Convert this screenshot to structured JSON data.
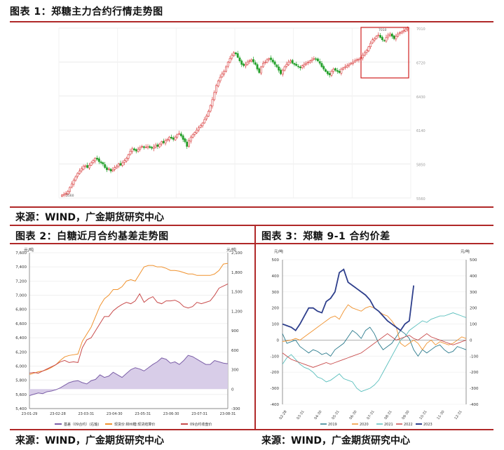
{
  "figure1": {
    "title": "图表 1：郑糖主力合约行情走势图",
    "source": "来源：WIND，广金期货研究中心",
    "chart_data": {
      "type": "candlestick",
      "y_ticks": [
        "5560",
        "5850",
        "6140",
        "6430",
        "6720",
        "7010"
      ],
      "ylim": [
        5560,
        7010
      ],
      "annotations": {
        "low_label": "5560",
        "high_label": "7010"
      },
      "closes": [
        5585,
        5590,
        5600,
        5615,
        5650,
        5680,
        5710,
        5740,
        5770,
        5790,
        5810,
        5830,
        5835,
        5820,
        5840,
        5860,
        5880,
        5900,
        5890,
        5870,
        5860,
        5850,
        5820,
        5800,
        5810,
        5790,
        5800,
        5820,
        5830,
        5850,
        5840,
        5860,
        5880,
        5900,
        5930,
        5960,
        5980,
        5970,
        5960,
        5975,
        5990,
        6000,
        5990,
        5995,
        6000,
        5990,
        5985,
        5995,
        6010,
        6000,
        6020,
        6040,
        6030,
        6050,
        6060,
        6080,
        6070,
        6060,
        6080,
        6100,
        6110,
        6090,
        6060,
        6040,
        6000,
        6050,
        6080,
        6100,
        6120,
        6140,
        6160,
        6180,
        6200,
        6230,
        6260,
        6300,
        6350,
        6400,
        6460,
        6520,
        6560,
        6590,
        6620,
        6640,
        6680,
        6720,
        6750,
        6780,
        6800,
        6790,
        6760,
        6730,
        6700,
        6690,
        6700,
        6720,
        6730,
        6740,
        6720,
        6700,
        6660,
        6630,
        6680,
        6710,
        6720,
        6740,
        6750,
        6740,
        6720,
        6700,
        6680,
        6650,
        6620,
        6650,
        6680,
        6700,
        6720,
        6730,
        6710,
        6700,
        6690,
        6680,
        6670,
        6690,
        6700,
        6710,
        6720,
        6730,
        6740,
        6750,
        6745,
        6730,
        6710,
        6680,
        6660,
        6640,
        6620,
        6610,
        6640,
        6660,
        6650,
        6640,
        6630,
        6660,
        6670,
        6680,
        6690,
        6700,
        6710,
        6720,
        6730,
        6740,
        6745,
        6760,
        6780,
        6800,
        6820,
        6850,
        6880,
        6910,
        6920,
        6940,
        6950,
        6930,
        6910,
        6900,
        6930,
        6950,
        6960,
        6940,
        6920,
        6940,
        6960,
        6970,
        6980,
        6990,
        7000,
        7010
      ]
    }
  },
  "figure2": {
    "title": "图表 2：白糖近月合约基差走势图",
    "source": "来源：WIND，广金期货研究中心",
    "chart_data": {
      "type": "line",
      "left_unit": "元/吨",
      "right_unit": "元/吨",
      "y_left_ticks": [
        "5,400",
        "5,600",
        "5,800",
        "6,000",
        "6,200",
        "6,400",
        "6,600",
        "6,800",
        "7,000",
        "7,200",
        "7,400",
        "7,600"
      ],
      "y_right_ticks": [
        "-300",
        "0",
        "300",
        "600",
        "900",
        "1,200",
        "1,500",
        "1,800",
        "2,100"
      ],
      "x_ticks": [
        "23-01-29",
        "23-02-28",
        "23-03-31",
        "23-04-30",
        "23-05-31",
        "23-06-30",
        "23-07-31",
        "23-08-31"
      ],
      "ylim_left": [
        5400,
        7600
      ],
      "ylim_right": [
        -300,
        2100
      ],
      "legend": [
        "基差（09合约）(右轴)",
        "现货价:柳州糖:现货结算价",
        "09合约收盘价"
      ],
      "series": [
        {
          "name": "基差（09合约）(右轴)",
          "color": "#7b5ea7",
          "values": [
            -100,
            -80,
            -60,
            -70,
            -40,
            -30,
            -10,
            20,
            60,
            100,
            120,
            130,
            100,
            80,
            130,
            150,
            220,
            180,
            200,
            260,
            220,
            180,
            240,
            300,
            330,
            310,
            280,
            330,
            380,
            420,
            480,
            460,
            400,
            420,
            380,
            440,
            520,
            500,
            460,
            420,
            380,
            380,
            440,
            420,
            400,
            390
          ]
        },
        {
          "name": "现货价:柳州糖:现货结算价",
          "color": "#f0922e",
          "values": [
            5880,
            5900,
            5920,
            5930,
            5950,
            5980,
            6020,
            6080,
            6130,
            6150,
            6160,
            6170,
            6350,
            6450,
            6550,
            6700,
            6850,
            6950,
            7000,
            7080,
            7080,
            7120,
            7200,
            7220,
            7200,
            7300,
            7400,
            7420,
            7420,
            7400,
            7400,
            7380,
            7350,
            7350,
            7340,
            7320,
            7300,
            7300,
            7280,
            7280,
            7280,
            7280,
            7300,
            7350,
            7440,
            7450
          ]
        },
        {
          "name": "09合约收盘价",
          "color": "#c84b4b",
          "values": [
            5900,
            5910,
            5900,
            5930,
            5960,
            5990,
            6020,
            6060,
            6080,
            6050,
            6060,
            6050,
            6260,
            6370,
            6400,
            6500,
            6600,
            6700,
            6700,
            6780,
            6830,
            6870,
            6900,
            6880,
            6920,
            7020,
            6900,
            6950,
            6980,
            6900,
            6880,
            6920,
            6920,
            6930,
            6900,
            6840,
            6820,
            6840,
            6900,
            6880,
            6900,
            6920,
            7000,
            7100,
            7130,
            7160
          ]
        }
      ]
    }
  },
  "figure3": {
    "title": "图表 3：郑糖 9-1 合约价差",
    "source": "来源：WIND，广金期货研究中心",
    "chart_data": {
      "type": "line",
      "left_unit": "元/吨",
      "right_unit": "元/吨",
      "y_ticks": [
        "500",
        "400",
        "300",
        "200",
        "100",
        "0",
        "-100",
        "-200",
        "-300",
        "-400"
      ],
      "ylim": [
        -400,
        500
      ],
      "x_ticks": [
        "02-28",
        "03-31",
        "04-30",
        "05-31",
        "06-30",
        "07-31",
        "08-31",
        "09-30",
        "10-31",
        "11-30",
        "12-31"
      ],
      "legend": [
        "2019",
        "2020",
        "2021",
        "2022",
        "2023"
      ],
      "series": [
        {
          "name": "2019",
          "color": "#2a7a8c",
          "values": [
            40,
            -20,
            -10,
            0,
            -40,
            -60,
            -80,
            -60,
            -70,
            -90,
            -80,
            -100,
            -60,
            -40,
            -20,
            20,
            60,
            40,
            10,
            60,
            80,
            40,
            -20,
            -60,
            -40,
            -20,
            20,
            60,
            40,
            10,
            -60,
            -100,
            -60,
            -80,
            -60,
            -40,
            -30,
            -60,
            -80,
            -70,
            -40,
            -50,
            -60
          ]
        },
        {
          "name": "2020",
          "color": "#f0922e",
          "values": [
            -10,
            -5,
            0,
            10,
            0,
            20,
            40,
            60,
            80,
            100,
            120,
            140,
            150,
            130,
            180,
            220,
            200,
            190,
            180,
            200,
            210,
            200,
            180,
            160,
            150,
            120,
            80,
            -20,
            -40,
            -20,
            0,
            -20,
            -60,
            -20,
            0,
            -30,
            -10,
            -20,
            -30,
            -20,
            0,
            20,
            10
          ]
        },
        {
          "name": "2021",
          "color": "#5abfbd",
          "values": [
            -150,
            -110,
            -90,
            -120,
            -150,
            -170,
            -180,
            -200,
            -230,
            -240,
            -260,
            -250,
            -230,
            -210,
            -240,
            -250,
            -260,
            -300,
            -320,
            -310,
            -300,
            -280,
            -250,
            -200,
            -150,
            -100,
            -50,
            0,
            20,
            60,
            80,
            100,
            120,
            110,
            130,
            140,
            150,
            150,
            160,
            170,
            160,
            150,
            140
          ]
        },
        {
          "name": "2022",
          "color": "#c84b4b",
          "values": [
            -80,
            -100,
            -120,
            -130,
            -140,
            -150,
            -160,
            -170,
            -160,
            -150,
            -140,
            -150,
            -140,
            -130,
            -120,
            -110,
            -100,
            -90,
            -80,
            -60,
            -40,
            -20,
            0,
            20,
            40,
            20,
            0,
            10,
            20,
            30,
            10,
            0,
            20,
            40,
            20,
            10,
            0,
            -10,
            -20,
            -30,
            -20,
            -10,
            0
          ]
        },
        {
          "name": "2023",
          "color": "#2e3f8c",
          "values": [
            100,
            90,
            80,
            60,
            100,
            150,
            200,
            200,
            180,
            170,
            240,
            260,
            300,
            420,
            440,
            360,
            340,
            320,
            300,
            280,
            250,
            200,
            180,
            150,
            120,
            100,
            80,
            60,
            100,
            120,
            340
          ]
        }
      ]
    }
  }
}
